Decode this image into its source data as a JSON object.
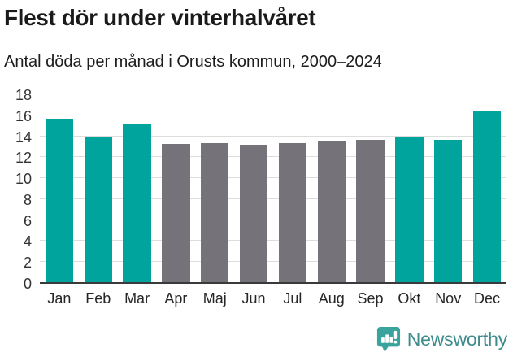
{
  "header": {
    "title": "Flest dör under vinterhalvåret",
    "subtitle": "Antal döda per månad i Orusts kommun, 2000–2024"
  },
  "chart_data": {
    "type": "bar",
    "title": "Flest dör under vinterhalvåret",
    "subtitle": "Antal döda per månad i Orusts kommun, 2000–2024",
    "categories": [
      "Jan",
      "Feb",
      "Mar",
      "Apr",
      "Maj",
      "Jun",
      "Jul",
      "Aug",
      "Sep",
      "Okt",
      "Nov",
      "Dec"
    ],
    "values": [
      15.6,
      13.9,
      15.1,
      13.2,
      13.3,
      13.1,
      13.3,
      13.4,
      13.6,
      13.8,
      13.6,
      16.4
    ],
    "highlighted": [
      true,
      true,
      true,
      false,
      false,
      false,
      false,
      false,
      false,
      true,
      true,
      true
    ],
    "xlabel": "",
    "ylabel": "",
    "ylim": [
      0,
      18
    ],
    "ytick_step": 2,
    "grid": true,
    "legend": false
  },
  "colors": {
    "bar_highlight": "#00a49c",
    "bar_muted": "#75727a",
    "gridline": "#dddddd",
    "axis_line": "#3a3a3a",
    "axis_text": "#333333",
    "title_text": "#1a1a1a",
    "brand_teal": "#3e8b8c",
    "logo_bubble": "#3aa39b"
  },
  "footer": {
    "brand": "Newsworthy",
    "logo_icon": "newsworthy-bubble-bar-chart-icon"
  }
}
